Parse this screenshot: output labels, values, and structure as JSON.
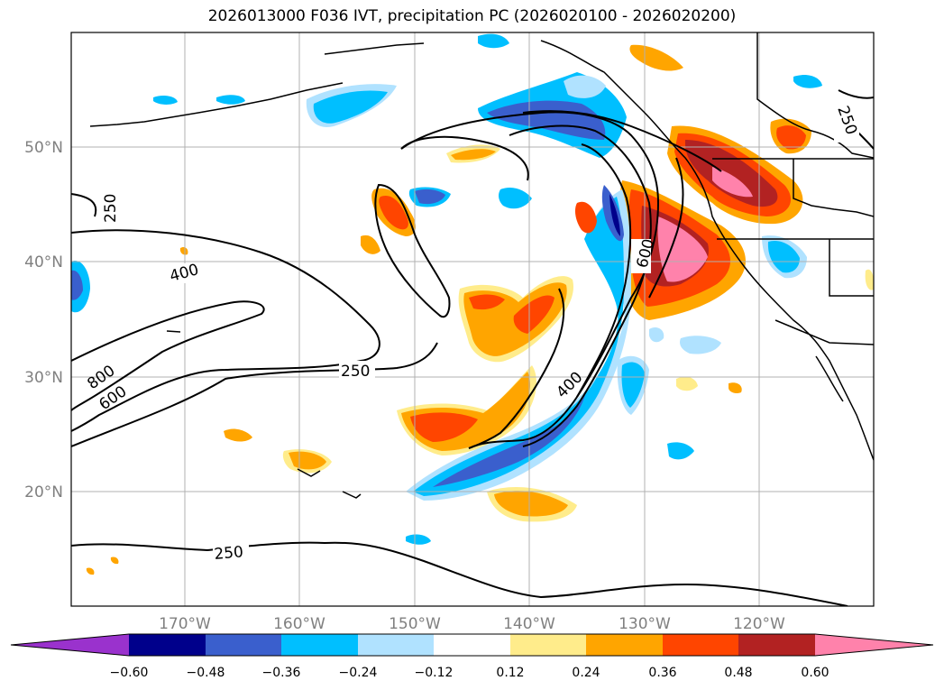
{
  "title": "2026013000 F036 IVT, precipitation PC (2026020100 - 2026020200)",
  "map": {
    "lon_range": [
      -180,
      -110
    ],
    "lat_range": [
      10,
      60
    ],
    "lat_ticks": [
      "50°N",
      "40°N",
      "30°N",
      "20°N"
    ],
    "lon_ticks": [
      "170°W",
      "160°W",
      "150°W",
      "140°W",
      "130°W",
      "120°W"
    ],
    "gridlines": true
  },
  "contour_labels": [
    "250",
    "250",
    "400",
    "600",
    "800",
    "250",
    "600",
    "400",
    "250",
    "250"
  ],
  "colorbar": {
    "colors": [
      "#9a32cd",
      "#00008b",
      "#3a5fcd",
      "#00bfff",
      "#b0e2ff",
      "#ffffff",
      "#ffec8b",
      "#ffa500",
      "#ff4500",
      "#b22222",
      "#ff82ab"
    ],
    "ticks": [
      "−0.60",
      "−0.48",
      "−0.36",
      "−0.24",
      "−0.12",
      "0.12",
      "0.24",
      "0.36",
      "0.48",
      "0.60"
    ]
  }
}
